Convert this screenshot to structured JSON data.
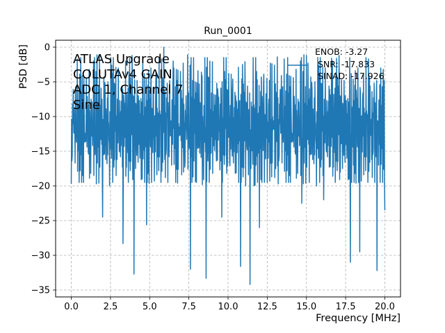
{
  "chart_data": {
    "type": "line",
    "title": "Run_0001",
    "xlabel": "Frequency [MHz]",
    "ylabel": "PSD [dB]",
    "xlim": [
      -1.0,
      21.0
    ],
    "ylim": [
      -36.0,
      1.0
    ],
    "x_ticks": [
      0.0,
      2.5,
      5.0,
      7.5,
      10.0,
      12.5,
      15.0,
      17.5,
      20.0
    ],
    "x_tick_labels": [
      "0.0",
      "2.5",
      "5.0",
      "7.5",
      "10.0",
      "12.5",
      "15.0",
      "17.5",
      "20.0"
    ],
    "y_ticks": [
      0,
      -5,
      -10,
      -15,
      -20,
      -25,
      -30,
      -35
    ],
    "y_tick_labels": [
      "0",
      "−5",
      "−10",
      "−15",
      "−20",
      "−25",
      "−30",
      "−35"
    ],
    "grid": true,
    "grid_style": "dashed",
    "annotation_lines": [
      "ATLAS Upgrade",
      "COLUTAv4 GAIN",
      "ADC 1, Channel 7",
      "Sine"
    ],
    "legend": {
      "placement": "top-right",
      "lines": [
        "ENOB: -3.27",
        "SNR: -17.833",
        "SINAD: -17.926"
      ]
    },
    "series": [
      {
        "color": "#1f77b4",
        "x_start": 0.0,
        "x_step": 0.02,
        "values_note_free": true,
        "values": [
          -15.2,
          -9.5,
          -19.1,
          -12.0,
          -8.2,
          -14.6,
          -3.4,
          -10.8,
          -16.9,
          -7.1,
          -12.9,
          -5.6,
          -15.8,
          -9.9,
          -2.1,
          -11.4,
          -17.3,
          -8.8,
          -13.5,
          -6.2,
          -16.1,
          -10.3,
          -4.7,
          -14.0,
          -9.0,
          -18.4,
          -12.6,
          -7.5,
          -15.1,
          -11.1,
          -3.9,
          -13.7,
          -8.4,
          -16.6,
          -10.6,
          -6.8,
          -14.9,
          -12.2,
          -9.3,
          -17.8,
          -5.1,
          -13.1,
          -10.1,
          -15.5,
          -7.9,
          -12.4,
          -16.3,
          -9.6,
          -4.4,
          -14.3,
          -11.7,
          -8.0,
          -13.9,
          -6.5,
          -16.8,
          -10.9,
          -12.8,
          -5.9,
          -15.3,
          -9.1
        ]
      }
    ],
    "spikes_down": [
      {
        "x": 2.0,
        "y": -24.5
      },
      {
        "x": 3.3,
        "y": -28.3
      },
      {
        "x": 4.0,
        "y": -32.7
      },
      {
        "x": 4.8,
        "y": -25.6
      },
      {
        "x": 7.6,
        "y": -32.0
      },
      {
        "x": 8.6,
        "y": -33.3
      },
      {
        "x": 10.8,
        "y": -31.6
      },
      {
        "x": 11.4,
        "y": -34.2
      },
      {
        "x": 17.8,
        "y": -31.0
      },
      {
        "x": 19.5,
        "y": -32.2
      },
      {
        "x": 9.6,
        "y": -24.5
      },
      {
        "x": 12.0,
        "y": -26.0
      },
      {
        "x": 14.7,
        "y": -22.5
      },
      {
        "x": 16.1,
        "y": -22.0
      },
      {
        "x": 18.4,
        "y": -29.5
      },
      {
        "x": 20.0,
        "y": -23.5
      }
    ],
    "spikes_up": [
      {
        "x": 5.9,
        "y": 0.0
      },
      {
        "x": 5.4,
        "y": -3.5
      },
      {
        "x": 15.1,
        "y": -2.3
      },
      {
        "x": 16.6,
        "y": -1.6
      },
      {
        "x": 13.4,
        "y": -4.1
      },
      {
        "x": 8.3,
        "y": -3.6
      },
      {
        "x": 10.3,
        "y": -4.6
      },
      {
        "x": 6.5,
        "y": -2.0
      }
    ]
  }
}
